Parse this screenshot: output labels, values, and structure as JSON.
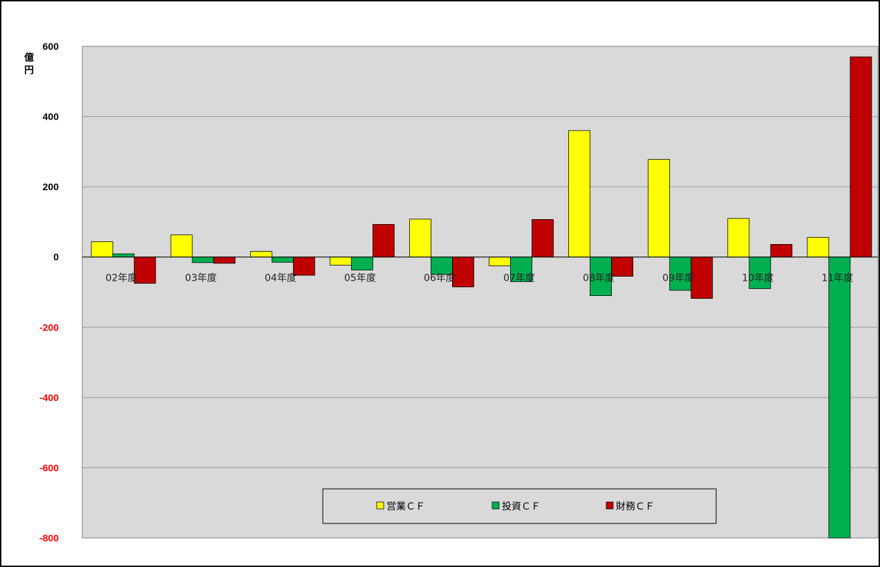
{
  "chart_data": {
    "type": "bar",
    "unit_label": "億\n円",
    "categories": [
      "02年度",
      "03年度",
      "04年度",
      "05年度",
      "06年度",
      "07年度",
      "08年度",
      "09年度",
      "10年度",
      "11年度"
    ],
    "series": [
      {
        "name": "営業ＣＦ",
        "color": "#ffff00",
        "values": [
          44,
          63,
          16,
          -23,
          108,
          -25,
          360,
          278,
          110,
          56
        ]
      },
      {
        "name": "投資ＣＦ",
        "color": "#00b050",
        "values": [
          9,
          -16,
          -15,
          -37,
          -50,
          -70,
          -110,
          -95,
          -90,
          -800
        ]
      },
      {
        "name": "財務ＣＦ",
        "color": "#c00000",
        "values": [
          -75,
          -18,
          -52,
          93,
          -85,
          107,
          -55,
          -118,
          36,
          570
        ]
      }
    ],
    "ylim": [
      -800,
      600
    ],
    "yticks": [
      600,
      400,
      200,
      0,
      -200,
      -400,
      -600,
      -800
    ],
    "negative_tick_color": "#ff0000",
    "positive_tick_color": "#000000",
    "plot_background": "#d9d9d9",
    "grid": true,
    "legend": "bottom-center"
  }
}
